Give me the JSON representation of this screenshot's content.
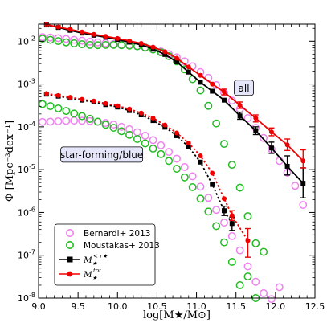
{
  "chart_data": {
    "type": "scatter",
    "xlabel": "log[M★/M⊙]",
    "ylabel": "Φ [Mpc⁻³dex⁻¹]",
    "xlim": [
      9.0,
      12.5
    ],
    "ylim_log10": [
      -8,
      -1.6
    ],
    "y_scale": "log",
    "x_ticks": [
      "9.0",
      "9.5",
      "10.0",
      "10.5",
      "11.0",
      "11.5",
      "12.0",
      "12.5"
    ],
    "y_ticks": [
      {
        "exp": -8,
        "label": "10-8"
      },
      {
        "exp": -7,
        "label": "10-7"
      },
      {
        "exp": -6,
        "label": "10-6"
      },
      {
        "exp": -5,
        "label": "10-5"
      },
      {
        "exp": -4,
        "label": "10-4"
      },
      {
        "exp": -3,
        "label": "10-3"
      },
      {
        "exp": -2,
        "label": "10-2"
      }
    ],
    "annotations": [
      {
        "text": "all",
        "x": 11.6,
        "y": 0.0008
      },
      {
        "text": "star-forming/blue",
        "x": 9.8,
        "y": 2.2e-05
      }
    ],
    "legend": {
      "position": "lower-left",
      "entries": [
        {
          "key": "bernardi",
          "label": "Bernardi+ 2013"
        },
        {
          "key": "moustakas",
          "label": "Moustakas+ 2013"
        },
        {
          "key": "mr",
          "label_main": "M",
          "label_sub": "★",
          "label_sup": "< r★"
        },
        {
          "key": "mtot",
          "label_main": "M",
          "label_sub": "★",
          "label_sup": "tot"
        }
      ]
    },
    "series": [
      {
        "key": "bernardi_all",
        "name": "Bernardi+ 2013",
        "marker": "circle-open",
        "color": "#ee82ee",
        "group": "all",
        "points": [
          [
            9.05,
            0.0125
          ],
          [
            9.15,
            0.0122
          ],
          [
            9.25,
            0.0118
          ],
          [
            9.35,
            0.0113
          ],
          [
            9.45,
            0.0108
          ],
          [
            9.55,
            0.0103
          ],
          [
            9.65,
            0.0098
          ],
          [
            9.75,
            0.0094
          ],
          [
            9.85,
            0.009
          ],
          [
            9.95,
            0.0086
          ],
          [
            10.05,
            0.0083
          ],
          [
            10.15,
            0.0081
          ],
          [
            10.25,
            0.0077
          ],
          [
            10.35,
            0.0072
          ],
          [
            10.45,
            0.0066
          ],
          [
            10.55,
            0.0058
          ],
          [
            10.65,
            0.005
          ],
          [
            10.75,
            0.0042
          ],
          [
            10.85,
            0.0034
          ],
          [
            10.95,
            0.0026
          ],
          [
            11.05,
            0.0019
          ],
          [
            11.15,
            0.0014
          ],
          [
            11.25,
            0.00095
          ],
          [
            11.35,
            0.00063
          ],
          [
            11.45,
            0.00041
          ],
          [
            11.55,
            0.00026
          ],
          [
            11.65,
            0.00016
          ],
          [
            11.75,
            9.5e-05
          ],
          [
            11.85,
            5.5e-05
          ],
          [
            11.95,
            3e-05
          ],
          [
            12.05,
            1.6e-05
          ],
          [
            12.15,
            8.5e-06
          ],
          [
            12.25,
            4.2e-06
          ],
          [
            12.35,
            1.5e-06
          ]
        ]
      },
      {
        "key": "moustakas_all",
        "name": "Moustakas+ 2013",
        "marker": "circle-open",
        "color": "#22bb22",
        "group": "all",
        "points": [
          [
            9.05,
            0.0115
          ],
          [
            9.15,
            0.0108
          ],
          [
            9.25,
            0.0101
          ],
          [
            9.35,
            0.0094
          ],
          [
            9.45,
            0.0089
          ],
          [
            9.55,
            0.0085
          ],
          [
            9.65,
            0.0082
          ],
          [
            9.75,
            0.0081
          ],
          [
            9.85,
            0.0082
          ],
          [
            9.95,
            0.0082
          ],
          [
            10.05,
            0.0081
          ],
          [
            10.15,
            0.0079
          ],
          [
            10.25,
            0.0076
          ],
          [
            10.35,
            0.0071
          ],
          [
            10.45,
            0.0064
          ],
          [
            10.55,
            0.0055
          ],
          [
            10.65,
            0.0045
          ],
          [
            10.75,
            0.0034
          ],
          [
            10.85,
            0.0022
          ],
          [
            10.95,
            0.0013
          ],
          [
            11.05,
            0.00071
          ],
          [
            11.15,
            0.00031
          ],
          [
            11.25,
            0.00012
          ],
          [
            11.35,
            4e-05
          ],
          [
            11.45,
            1.3e-05
          ],
          [
            11.55,
            3.8e-06
          ],
          [
            11.65,
            8.2e-07
          ],
          [
            11.75,
            1.9e-07
          ]
        ]
      },
      {
        "key": "bernardi_sf",
        "name": "Bernardi+ 2013",
        "marker": "circle-open",
        "color": "#ee82ee",
        "group": "sf",
        "points": [
          [
            9.05,
            0.00013
          ],
          [
            9.15,
            0.000132
          ],
          [
            9.25,
            0.000135
          ],
          [
            9.35,
            0.000138
          ],
          [
            9.45,
            0.00014
          ],
          [
            9.55,
            0.000139
          ],
          [
            9.65,
            0.000136
          ],
          [
            9.75,
            0.000131
          ],
          [
            9.85,
            0.000123
          ],
          [
            9.95,
            0.000113
          ],
          [
            10.05,
            0.0001
          ],
          [
            10.15,
            8.8e-05
          ],
          [
            10.25,
            7.5e-05
          ],
          [
            10.35,
            6.2e-05
          ],
          [
            10.45,
            4.9e-05
          ],
          [
            10.55,
            3.7e-05
          ],
          [
            10.65,
            2.6e-05
          ],
          [
            10.75,
            1.8e-05
          ],
          [
            10.85,
            1.15e-05
          ],
          [
            10.95,
            7e-06
          ],
          [
            11.05,
            4e-06
          ],
          [
            11.15,
            2.2e-06
          ],
          [
            11.25,
            1.15e-06
          ],
          [
            11.35,
            5.8e-07
          ],
          [
            11.45,
            2.8e-07
          ],
          [
            11.55,
            1.3e-07
          ],
          [
            11.65,
            5.5e-08
          ],
          [
            11.75,
            2.4e-08
          ],
          [
            11.85,
            1.3e-08
          ],
          [
            11.95,
            9.5e-09
          ],
          [
            12.05,
            1.8e-08
          ]
        ]
      },
      {
        "key": "moustakas_sf",
        "name": "Moustakas+ 2013",
        "marker": "circle-open",
        "color": "#22bb22",
        "group": "sf",
        "points": [
          [
            9.05,
            0.00034
          ],
          [
            9.15,
            0.000305
          ],
          [
            9.25,
            0.00027
          ],
          [
            9.35,
            0.000235
          ],
          [
            9.45,
            0.000205
          ],
          [
            9.55,
            0.000178
          ],
          [
            9.65,
            0.000154
          ],
          [
            9.75,
            0.000132
          ],
          [
            9.85,
            0.000112
          ],
          [
            9.95,
            9.5e-05
          ],
          [
            10.05,
            7.9e-05
          ],
          [
            10.15,
            6.5e-05
          ],
          [
            10.25,
            5.2e-05
          ],
          [
            10.35,
            4.1e-05
          ],
          [
            10.45,
            3.1e-05
          ],
          [
            10.55,
            2.3e-05
          ],
          [
            10.65,
            1.6e-05
          ],
          [
            10.75,
            1.05e-05
          ],
          [
            10.85,
            6.6e-06
          ],
          [
            10.95,
            3.9e-06
          ],
          [
            11.05,
            2.1e-06
          ],
          [
            11.15,
            1.05e-06
          ],
          [
            11.25,
            4.8e-07
          ],
          [
            11.35,
            2e-07
          ],
          [
            11.45,
            7e-08
          ],
          [
            11.55,
            2e-08
          ],
          [
            11.65,
            3.2e-08
          ],
          [
            11.75,
            1e-08
          ],
          [
            11.85,
            1.2e-07
          ]
        ]
      },
      {
        "key": "mr_all",
        "name": "M★<r★",
        "marker": "square-filled",
        "color": "#000000",
        "group": "all",
        "line": "solid",
        "points": [
          [
            9.1,
            0.024
          ],
          [
            9.25,
            0.021
          ],
          [
            9.4,
            0.018
          ],
          [
            9.55,
            0.0155
          ],
          [
            9.7,
            0.0138
          ],
          [
            9.85,
            0.0124
          ],
          [
            10.0,
            0.011
          ],
          [
            10.15,
            0.0095
          ],
          [
            10.3,
            0.0082
          ],
          [
            10.45,
            0.0066
          ],
          [
            10.6,
            0.0049
          ],
          [
            10.75,
            0.0033
          ],
          [
            10.9,
            0.0019
          ],
          [
            11.05,
            0.0011
          ],
          [
            11.2,
            0.00068
          ],
          [
            11.35,
            0.00042
          ],
          [
            11.55,
            0.00018
          ],
          [
            11.75,
            8.2e-05
          ],
          [
            11.95,
            3.2e-05
          ],
          [
            12.15,
            1.2e-05
          ],
          [
            12.35,
            4.8e-06
          ]
        ],
        "errors": [
          [
            11.55,
            0.00015,
            0.00022
          ],
          [
            11.75,
            6.6e-05,
            0.0001
          ],
          [
            11.95,
            2.4e-05,
            4.4e-05
          ],
          [
            12.15,
            7.5e-06,
            2.1e-05
          ],
          [
            12.35,
            2.2e-06,
            1.1e-05
          ]
        ]
      },
      {
        "key": "mtot_all",
        "name": "M★tot",
        "marker": "circle-filled",
        "color": "#ee0000",
        "group": "all",
        "line": "solid",
        "points": [
          [
            9.1,
            0.0245
          ],
          [
            9.25,
            0.0215
          ],
          [
            9.4,
            0.019
          ],
          [
            9.55,
            0.0165
          ],
          [
            9.7,
            0.0145
          ],
          [
            9.85,
            0.013
          ],
          [
            10.0,
            0.0116
          ],
          [
            10.15,
            0.0102
          ],
          [
            10.3,
            0.0089
          ],
          [
            10.45,
            0.0073
          ],
          [
            10.6,
            0.0057
          ],
          [
            10.75,
            0.004
          ],
          [
            10.9,
            0.0025
          ],
          [
            11.05,
            0.0016
          ],
          [
            11.2,
            0.001
          ],
          [
            11.35,
            0.00065
          ],
          [
            11.55,
            0.00032
          ],
          [
            11.75,
            0.00016
          ],
          [
            11.95,
            7.6e-05
          ],
          [
            12.15,
            3.8e-05
          ],
          [
            12.35,
            1.6e-05
          ]
        ],
        "errors": [
          [
            11.35,
            0.00056,
            0.00076
          ],
          [
            11.55,
            0.00027,
            0.00038
          ],
          [
            11.75,
            0.00013,
            0.00019
          ],
          [
            11.95,
            6.2e-05,
            9.4e-05
          ],
          [
            12.15,
            2.8e-05,
            5.2e-05
          ],
          [
            12.35,
            1.1e-05,
            2.9e-05
          ]
        ]
      },
      {
        "key": "mr_sf",
        "name": "M★<r★",
        "marker": "square-filled",
        "color": "#000000",
        "group": "sf",
        "line": "dashed",
        "points": [
          [
            9.1,
            0.00058
          ],
          [
            9.25,
            0.00052
          ],
          [
            9.4,
            0.00047
          ],
          [
            9.55,
            0.00042
          ],
          [
            9.7,
            0.00038
          ],
          [
            9.85,
            0.00033
          ],
          [
            10.0,
            0.00029
          ],
          [
            10.15,
            0.00024
          ],
          [
            10.3,
            0.00019
          ],
          [
            10.45,
            0.00014
          ],
          [
            10.6,
            9.8e-05
          ],
          [
            10.75,
            6.2e-05
          ],
          [
            10.9,
            3.4e-05
          ],
          [
            11.05,
            1.5e-05
          ],
          [
            11.2,
            4.5e-06
          ],
          [
            11.35,
            1.1e-06
          ],
          [
            11.45,
            5.5e-07
          ]
        ],
        "errors": [
          [
            11.35,
            8.5e-07,
            1.4e-06
          ],
          [
            11.45,
            3.8e-07,
            7.8e-07
          ]
        ]
      },
      {
        "key": "mtot_sf",
        "name": "M★tot",
        "marker": "circle-filled",
        "color": "#ee0000",
        "group": "sf",
        "line": "dashed",
        "points": [
          [
            9.1,
            0.0006
          ],
          [
            9.25,
            0.00054
          ],
          [
            9.4,
            0.00049
          ],
          [
            9.55,
            0.00044
          ],
          [
            9.7,
            0.0004
          ],
          [
            9.85,
            0.00035
          ],
          [
            10.0,
            0.00031
          ],
          [
            10.15,
            0.00026
          ],
          [
            10.3,
            0.00021
          ],
          [
            10.45,
            0.00016
          ],
          [
            10.6,
            0.00011
          ],
          [
            10.75,
            7.2e-05
          ],
          [
            10.9,
            4.2e-05
          ],
          [
            11.05,
            2.1e-05
          ],
          [
            11.2,
            8.3e-06
          ],
          [
            11.35,
            2.1e-06
          ],
          [
            11.45,
            8.5e-07
          ],
          [
            11.65,
            2.2e-07
          ]
        ],
        "errors": [
          [
            11.45,
            6.5e-07,
            1.1e-06
          ],
          [
            11.65,
            9e-08,
            4.2e-07
          ]
        ]
      }
    ]
  }
}
